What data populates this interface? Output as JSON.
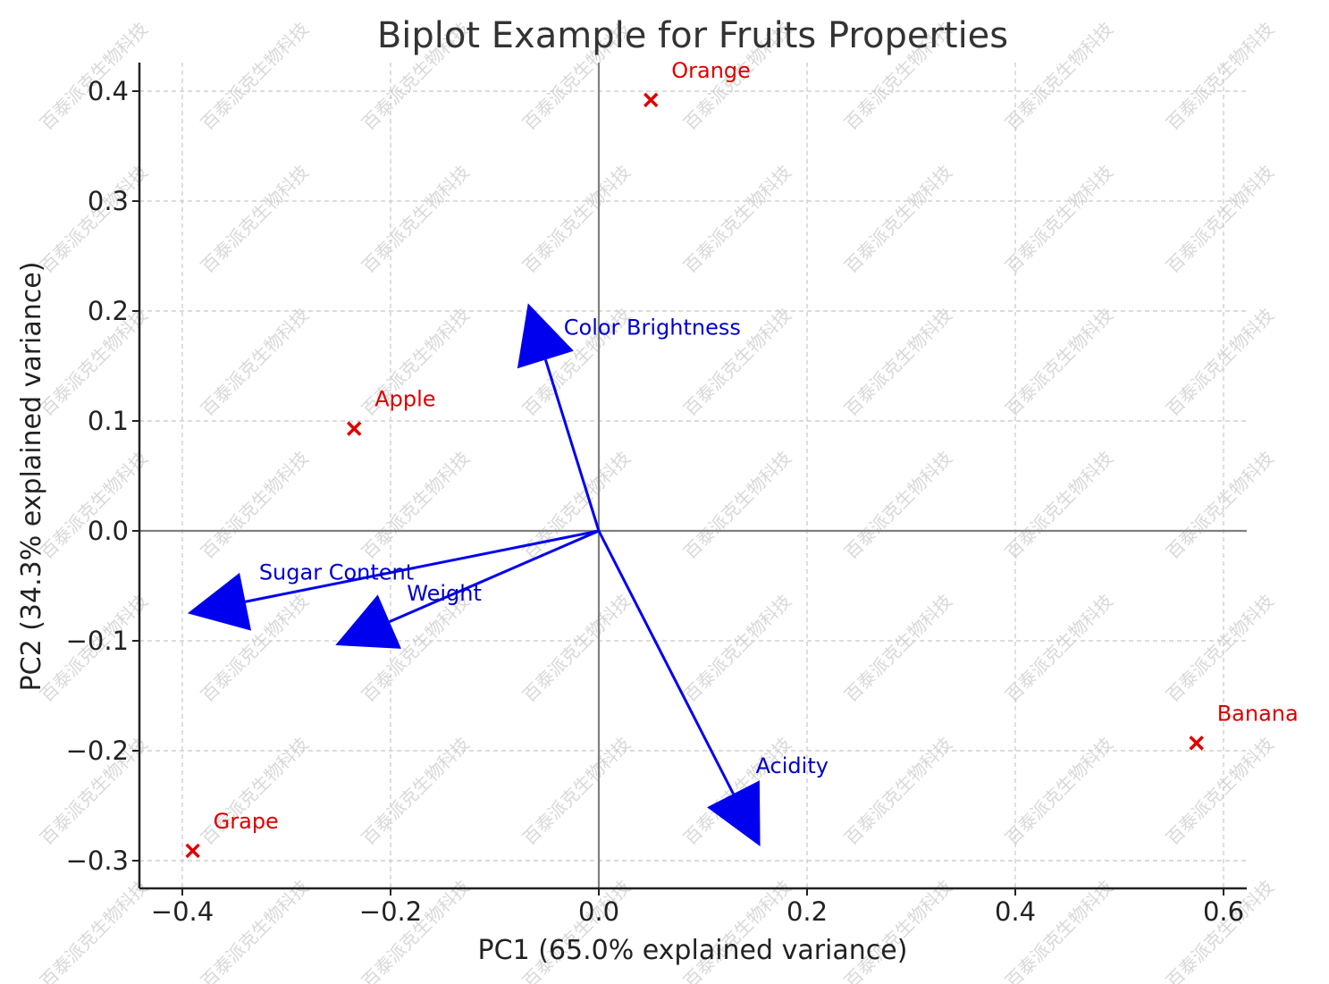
{
  "chart_data": {
    "type": "scatter",
    "title": "Biplot Example for Fruits Properties",
    "xlabel": "PC1 (65.0% explained variance)",
    "ylabel": "PC2 (34.3% explained variance)",
    "xlim": [
      -0.44,
      0.62
    ],
    "ylim": [
      -0.325,
      0.43
    ],
    "xticks": [
      -0.4,
      -0.2,
      0.0,
      0.2,
      0.4,
      0.6
    ],
    "xtick_labels": [
      "−0.4",
      "−0.2",
      "0.0",
      "0.2",
      "0.4",
      "0.6"
    ],
    "yticks": [
      -0.3,
      -0.2,
      -0.1,
      0.0,
      0.1,
      0.2,
      0.3,
      0.4
    ],
    "ytick_labels": [
      "−0.3",
      "−0.2",
      "−0.1",
      "0.0",
      "0.1",
      "0.2",
      "0.3",
      "0.4"
    ],
    "grid": true,
    "grid_style": "dashed",
    "points": [
      {
        "label": "Orange",
        "x": 0.05,
        "y": 0.392
      },
      {
        "label": "Apple",
        "x": -0.235,
        "y": 0.093
      },
      {
        "label": "Banana",
        "x": 0.574,
        "y": -0.193
      },
      {
        "label": "Grape",
        "x": -0.39,
        "y": -0.291
      }
    ],
    "vectors": [
      {
        "label": "Color Brightness",
        "x": -0.068,
        "y": 0.207
      },
      {
        "label": "Sugar Content",
        "x": -0.395,
        "y": -0.075
      },
      {
        "label": "Weight",
        "x": -0.253,
        "y": -0.104
      },
      {
        "label": "Acidity",
        "x": 0.155,
        "y": -0.287
      }
    ],
    "point_marker": "x",
    "point_color": "#dd0000",
    "vector_color": "#0000ee",
    "reference_lines": [
      {
        "axis": "x",
        "value": 0
      },
      {
        "axis": "y",
        "value": 0
      }
    ],
    "watermark": "百泰派克生物科技"
  }
}
